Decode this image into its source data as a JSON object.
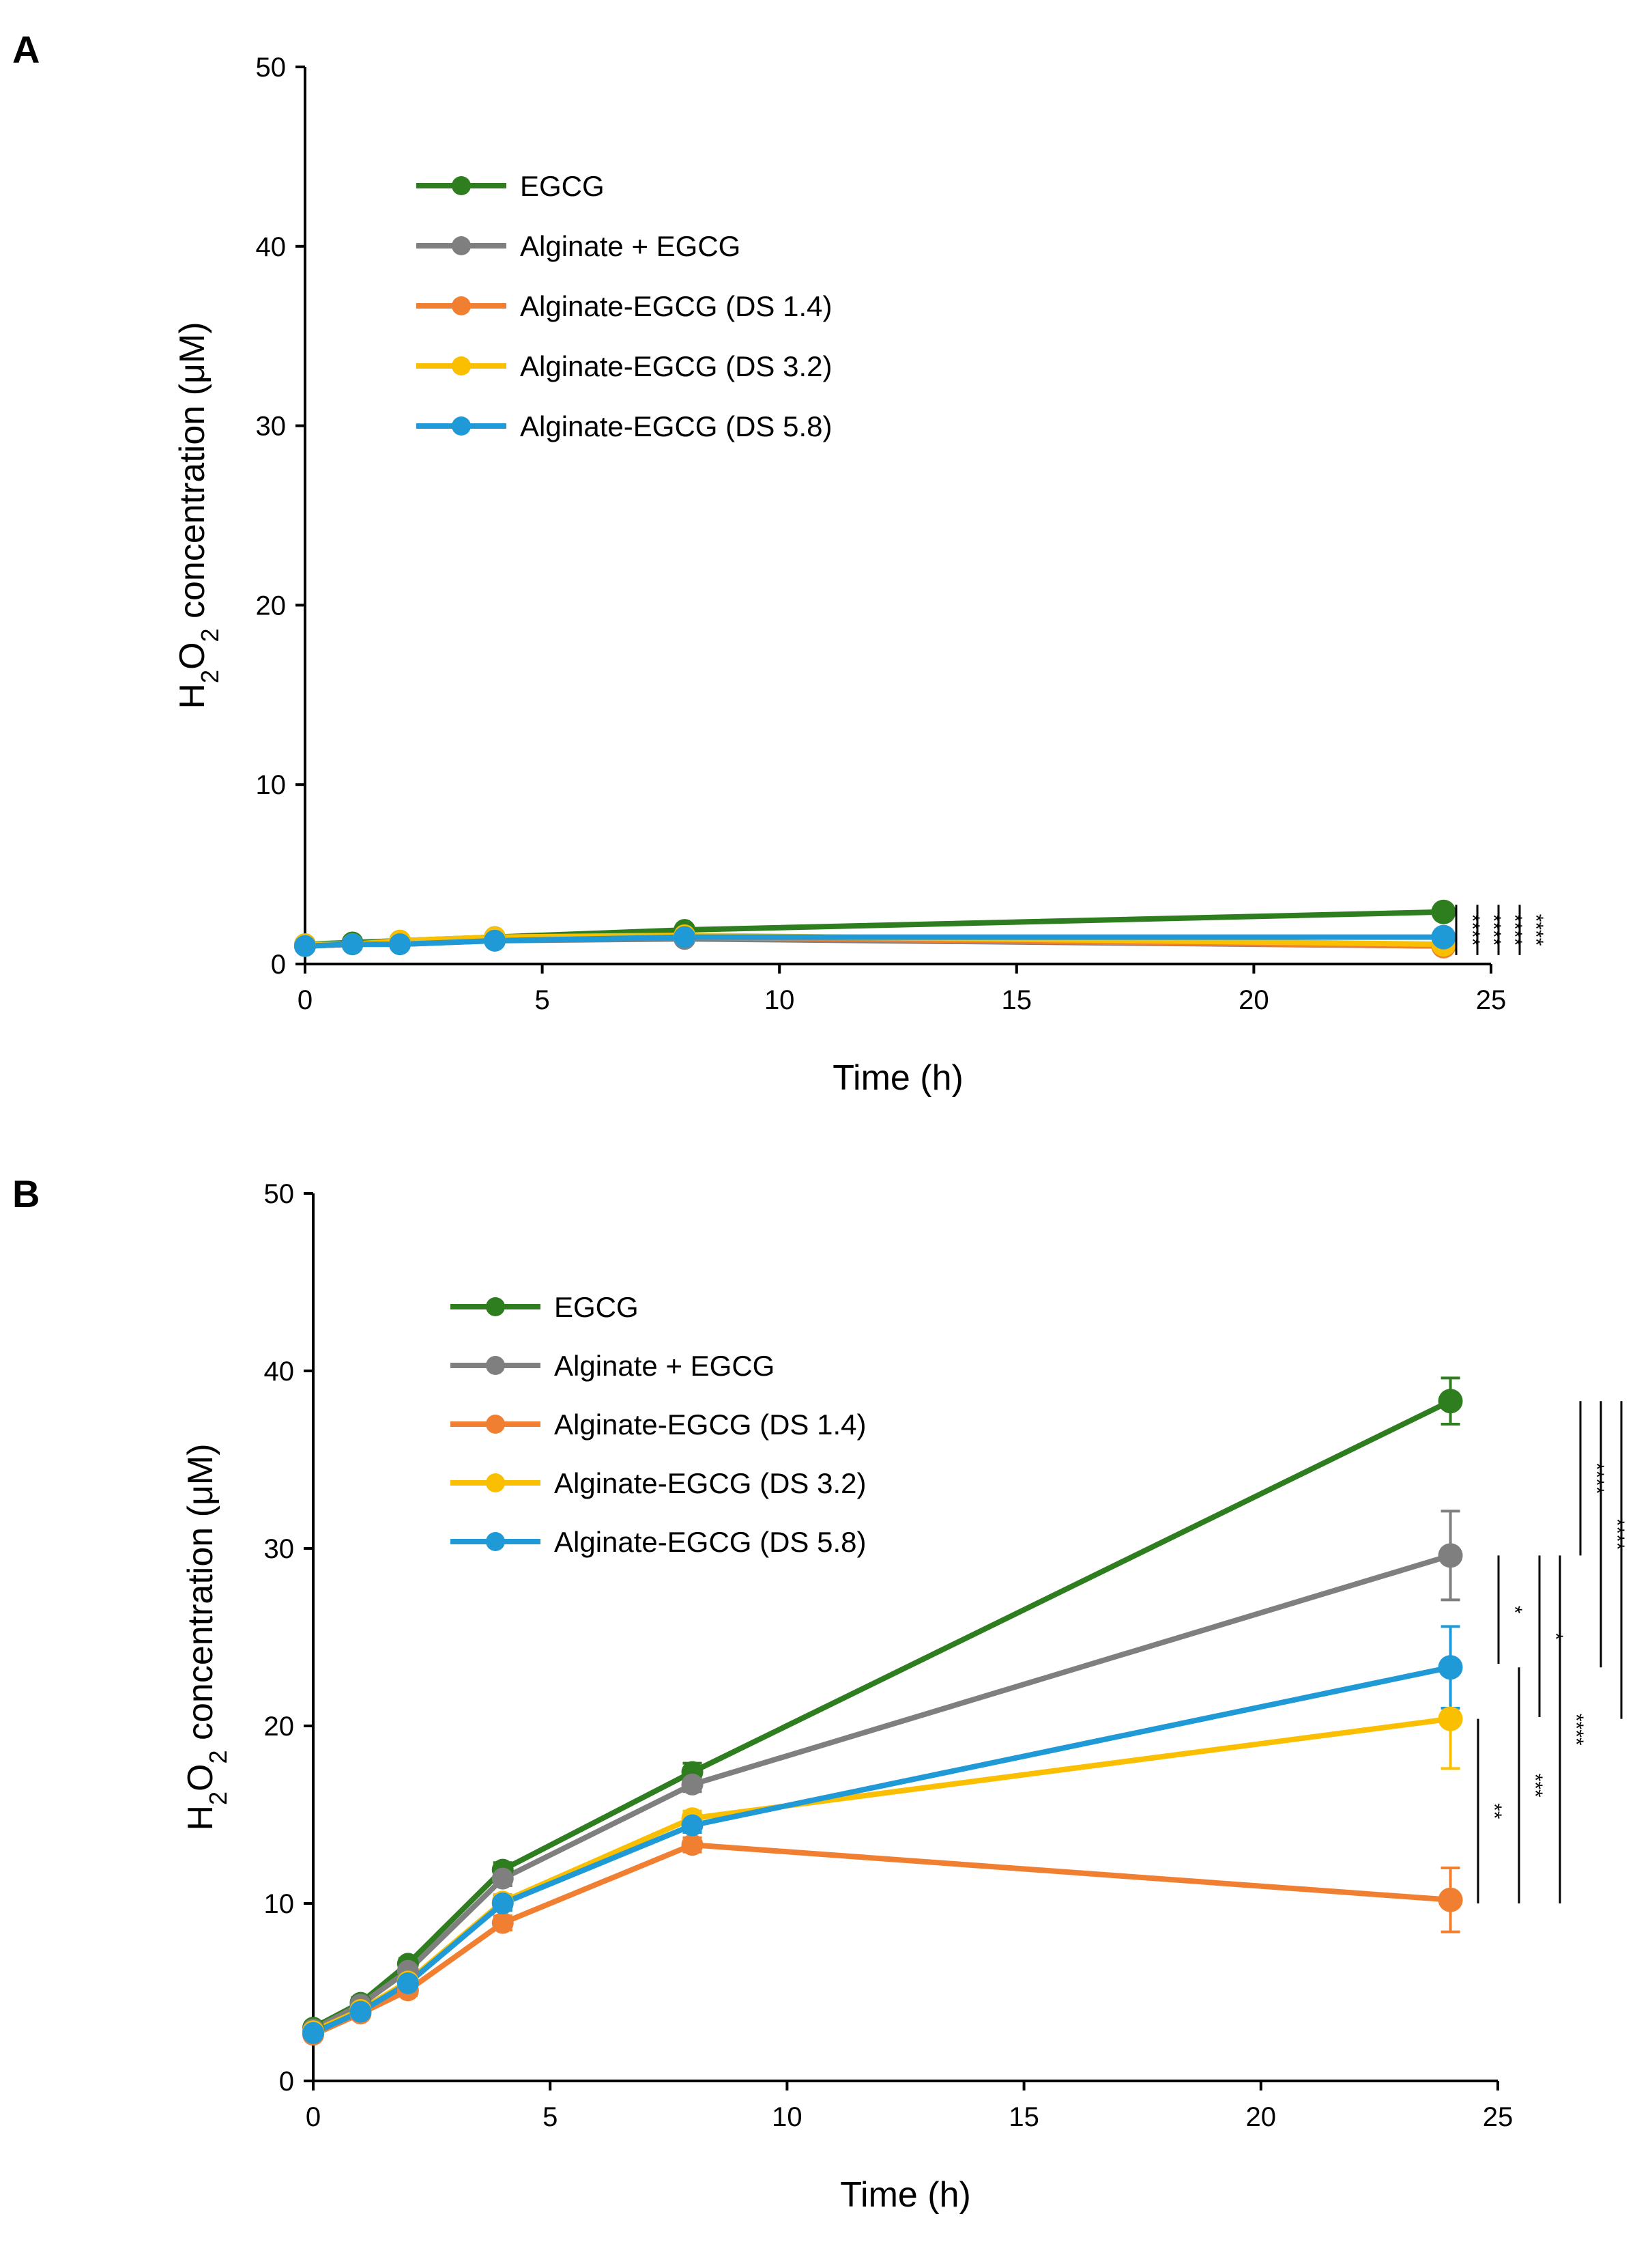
{
  "figure": {
    "panels": [
      "A",
      "B"
    ],
    "colors": {
      "EGCG": "#2e7d1f",
      "Alginate + EGCG": "#7f7f7f",
      "Alginate-EGCG (DS 1.4)": "#f07f32",
      "Alginate-EGCG (DS 3.2)": "#f9bf00",
      "Alginate-EGCG (DS 5.8)": "#1f9ad6",
      "axis": "#000000",
      "text": "#000000"
    }
  },
  "chart_data": [
    {
      "panel": "A",
      "type": "line",
      "title": "",
      "xlabel": "Time (h)",
      "ylabel_parts": [
        "H",
        "2",
        "O",
        "2",
        " concentration (μM)"
      ],
      "xlim": [
        0,
        25
      ],
      "ylim": [
        0,
        50
      ],
      "xticks": [
        "0",
        "5",
        "10",
        "15",
        "20",
        "25"
      ],
      "yticks": [
        "0",
        "10",
        "20",
        "30",
        "40",
        "50"
      ],
      "legend_position": "upper-left",
      "x": [
        0,
        1,
        2,
        4,
        8,
        24
      ],
      "series": [
        {
          "name": "EGCG",
          "label": "EGCG",
          "color": "#2e7d1f",
          "values": [
            1.1,
            1.2,
            1.3,
            1.5,
            1.9,
            2.9
          ],
          "errors": [
            0.1,
            0.1,
            0.1,
            0.1,
            0.1,
            0.2
          ]
        },
        {
          "name": "Alginate + EGCG",
          "label": "Alginate  + EGCG",
          "color": "#7f7f7f",
          "values": [
            1.0,
            1.1,
            1.1,
            1.3,
            1.4,
            1.0
          ],
          "errors": [
            0.1,
            0.1,
            0.1,
            0.1,
            0.1,
            0.1
          ]
        },
        {
          "name": "Alginate-EGCG (DS 1.4)",
          "label": "Alginate-EGCG  (DS 1.4)",
          "color": "#f07f32",
          "values": [
            1.0,
            1.1,
            1.2,
            1.4,
            1.5,
            1.0
          ],
          "errors": [
            0.1,
            0.1,
            0.1,
            0.1,
            0.1,
            0.1
          ]
        },
        {
          "name": "Alginate-EGCG (DS 3.2)",
          "label": "Alginate-EGCG  (DS 3.2)",
          "color": "#f9bf00",
          "values": [
            1.1,
            1.1,
            1.3,
            1.5,
            1.6,
            1.1
          ],
          "errors": [
            0.1,
            0.1,
            0.1,
            0.1,
            0.1,
            0.1
          ]
        },
        {
          "name": "Alginate-EGCG (DS 5.8)",
          "label": "Alginate-EGCG  (DS 5.8)",
          "color": "#1f9ad6",
          "values": [
            1.0,
            1.1,
            1.1,
            1.3,
            1.5,
            1.5
          ],
          "errors": [
            0.1,
            0.1,
            0.1,
            0.1,
            0.1,
            0.1
          ]
        }
      ],
      "significance": [
        {
          "label": "****",
          "y_range": [
            0.5,
            3.3
          ]
        },
        {
          "label": "****",
          "y_range": [
            0.5,
            3.3
          ]
        },
        {
          "label": "****",
          "y_range": [
            0.5,
            3.3
          ]
        },
        {
          "label": "****",
          "y_range": [
            0.5,
            3.3
          ]
        }
      ]
    },
    {
      "panel": "B",
      "type": "line",
      "title": "",
      "xlabel": "Time (h)",
      "ylabel_parts": [
        "H",
        "2",
        "O",
        "2",
        " concentration (μM)"
      ],
      "xlim": [
        0,
        25
      ],
      "ylim": [
        0,
        50
      ],
      "xticks": [
        "0",
        "5",
        "10",
        "15",
        "20",
        "25"
      ],
      "yticks": [
        "0",
        "10",
        "20",
        "30",
        "40",
        "50"
      ],
      "legend_position": "upper-left",
      "x": [
        0,
        1,
        2,
        4,
        8,
        24
      ],
      "series": [
        {
          "name": "EGCG",
          "label": "EGCG",
          "color": "#2e7d1f",
          "values": [
            3.0,
            4.4,
            6.6,
            11.9,
            17.4,
            38.3
          ],
          "errors": [
            0.2,
            0.3,
            0.3,
            0.4,
            0.5,
            1.3
          ]
        },
        {
          "name": "Alginate + EGCG",
          "label": "Alginate  + EGCG",
          "color": "#7f7f7f",
          "values": [
            2.9,
            4.3,
            6.2,
            11.4,
            16.7,
            29.6
          ],
          "errors": [
            0.2,
            0.3,
            0.3,
            0.4,
            0.4,
            2.5
          ]
        },
        {
          "name": "Alginate-EGCG (DS 1.4)",
          "label": "Alginate-EGCG  (DS 1.4)",
          "color": "#f07f32",
          "values": [
            2.6,
            3.8,
            5.1,
            8.9,
            13.3,
            10.2
          ],
          "errors": [
            0.2,
            0.2,
            0.3,
            0.4,
            0.4,
            1.8
          ]
        },
        {
          "name": "Alginate-EGCG (DS 3.2)",
          "label": "Alginate-EGCG  (DS 3.2)",
          "color": "#f9bf00",
          "values": [
            2.8,
            4.0,
            5.6,
            10.1,
            14.8,
            20.4
          ],
          "errors": [
            0.2,
            0.2,
            0.3,
            0.4,
            0.4,
            2.8
          ]
        },
        {
          "name": "Alginate-EGCG (DS 5.8)",
          "label": "Alginate-EGCG  (DS 5.8)",
          "color": "#1f9ad6",
          "values": [
            2.7,
            3.9,
            5.5,
            10.0,
            14.4,
            23.3
          ],
          "errors": [
            0.2,
            0.2,
            0.3,
            0.4,
            0.4,
            2.3
          ]
        }
      ],
      "significance": [
        {
          "label": "**",
          "y_range": [
            10.0,
            20.4
          ]
        },
        {
          "label": "*",
          "y_range": [
            23.5,
            29.6
          ]
        },
        {
          "label": "***",
          "y_range": [
            10.0,
            23.3
          ]
        },
        {
          "label": "*",
          "y_range": [
            20.5,
            29.6
          ]
        },
        {
          "label": "****",
          "y_range": [
            10.0,
            29.6
          ]
        },
        {
          "label": "****",
          "y_range": [
            29.6,
            38.3
          ]
        },
        {
          "label": "****",
          "y_range": [
            23.3,
            38.3
          ]
        },
        {
          "label": "****",
          "y_range": [
            20.4,
            38.3
          ]
        },
        {
          "label": "****",
          "y_range": [
            10.0,
            38.3
          ]
        }
      ]
    }
  ]
}
